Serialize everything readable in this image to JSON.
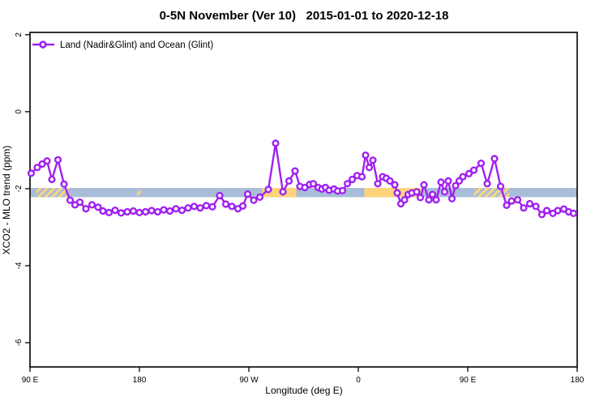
{
  "chart_data": {
    "type": "line",
    "title": "0-5N November (Ver 10)   2015-01-01 to 2020-12-18",
    "xlabel": "Longitude (deg E)",
    "ylabel": "XCO2 - MLO trend (ppm)",
    "grid": false,
    "x_range_deg_e": [
      90,
      540
    ],
    "y_range": [
      -6.63,
      2.06
    ],
    "x_ticks": [
      {
        "lon": 90,
        "label": "90 E"
      },
      {
        "lon": 180,
        "label": "180"
      },
      {
        "lon": 270,
        "label": "90 W"
      },
      {
        "lon": 360,
        "label": "0"
      },
      {
        "lon": 450,
        "label": "90 E"
      },
      {
        "lon": 540,
        "label": "180"
      }
    ],
    "y_ticks": [
      2,
      0,
      -2,
      -4,
      -6
    ],
    "legend": {
      "position": "top-left",
      "label": "Land (Nadir&Glint) and Ocean (Glint)"
    },
    "series_color": "#A020F0",
    "marker": "open-circle",
    "reference_band": {
      "y_top": -1.98,
      "y_bottom": -2.22,
      "ocean_color": "#a9bdd9",
      "land_color": "#fcd47c",
      "land_segments": [
        {
          "from": 95,
          "to": 122,
          "style": "hatched"
        },
        {
          "from": 178,
          "to": 181,
          "style": "hatched"
        },
        {
          "from": 281,
          "to": 309,
          "style": "solid"
        },
        {
          "from": 365,
          "to": 412,
          "style": "solid"
        },
        {
          "from": 455,
          "to": 484,
          "style": "hatched"
        }
      ]
    },
    "points": [
      [
        91,
        -1.6
      ],
      [
        96,
        -1.45
      ],
      [
        100,
        -1.36
      ],
      [
        104,
        -1.28
      ],
      [
        108,
        -1.76
      ],
      [
        113,
        -1.25
      ],
      [
        118,
        -1.88
      ],
      [
        123,
        -2.3
      ],
      [
        127,
        -2.42
      ],
      [
        131,
        -2.35
      ],
      [
        136,
        -2.52
      ],
      [
        141,
        -2.42
      ],
      [
        146,
        -2.48
      ],
      [
        150,
        -2.58
      ],
      [
        155,
        -2.62
      ],
      [
        160,
        -2.56
      ],
      [
        165,
        -2.63
      ],
      [
        170,
        -2.6
      ],
      [
        175,
        -2.58
      ],
      [
        180,
        -2.62
      ],
      [
        185,
        -2.6
      ],
      [
        190,
        -2.57
      ],
      [
        195,
        -2.6
      ],
      [
        200,
        -2.55
      ],
      [
        205,
        -2.58
      ],
      [
        210,
        -2.52
      ],
      [
        215,
        -2.56
      ],
      [
        220,
        -2.5
      ],
      [
        225,
        -2.46
      ],
      [
        230,
        -2.5
      ],
      [
        235,
        -2.44
      ],
      [
        240,
        -2.47
      ],
      [
        246,
        -2.18
      ],
      [
        251,
        -2.4
      ],
      [
        256,
        -2.46
      ],
      [
        261,
        -2.52
      ],
      [
        265,
        -2.45
      ],
      [
        269,
        -2.14
      ],
      [
        274,
        -2.3
      ],
      [
        279,
        -2.22
      ],
      [
        286,
        -2.02
      ],
      [
        292,
        -0.82
      ],
      [
        298,
        -2.08
      ],
      [
        303,
        -1.8
      ],
      [
        308,
        -1.54
      ],
      [
        312,
        -1.94
      ],
      [
        316,
        -1.97
      ],
      [
        320,
        -1.89
      ],
      [
        323,
        -1.87
      ],
      [
        327,
        -1.97
      ],
      [
        330,
        -2.01
      ],
      [
        333,
        -1.97
      ],
      [
        336,
        -2.04
      ],
      [
        340,
        -2.01
      ],
      [
        343,
        -2.06
      ],
      [
        347,
        -2.05
      ],
      [
        351,
        -1.87
      ],
      [
        355,
        -1.76
      ],
      [
        359,
        -1.66
      ],
      [
        363,
        -1.69
      ],
      [
        366,
        -1.13
      ],
      [
        369,
        -1.45
      ],
      [
        372,
        -1.26
      ],
      [
        376,
        -1.87
      ],
      [
        380,
        -1.69
      ],
      [
        383,
        -1.73
      ],
      [
        386,
        -1.8
      ],
      [
        390,
        -1.9
      ],
      [
        392,
        -2.11
      ],
      [
        395,
        -2.39
      ],
      [
        398,
        -2.29
      ],
      [
        401,
        -2.15
      ],
      [
        404,
        -2.11
      ],
      [
        408,
        -2.08
      ],
      [
        411,
        -2.23
      ],
      [
        414,
        -1.9
      ],
      [
        418,
        -2.29
      ],
      [
        421,
        -2.15
      ],
      [
        424,
        -2.29
      ],
      [
        428,
        -1.83
      ],
      [
        431,
        -2.08
      ],
      [
        434,
        -1.8
      ],
      [
        437,
        -2.26
      ],
      [
        440,
        -1.92
      ],
      [
        443,
        -1.8
      ],
      [
        446,
        -1.69
      ],
      [
        451,
        -1.61
      ],
      [
        455,
        -1.52
      ],
      [
        461,
        -1.34
      ],
      [
        466,
        -1.87
      ],
      [
        472,
        -1.22
      ],
      [
        477,
        -1.94
      ],
      [
        482,
        -2.43
      ],
      [
        486,
        -2.32
      ],
      [
        491,
        -2.29
      ],
      [
        496,
        -2.5
      ],
      [
        501,
        -2.39
      ],
      [
        506,
        -2.46
      ],
      [
        511,
        -2.67
      ],
      [
        515,
        -2.57
      ],
      [
        520,
        -2.64
      ],
      [
        524,
        -2.57
      ],
      [
        529,
        -2.53
      ],
      [
        533,
        -2.6
      ],
      [
        537,
        -2.64
      ]
    ]
  }
}
